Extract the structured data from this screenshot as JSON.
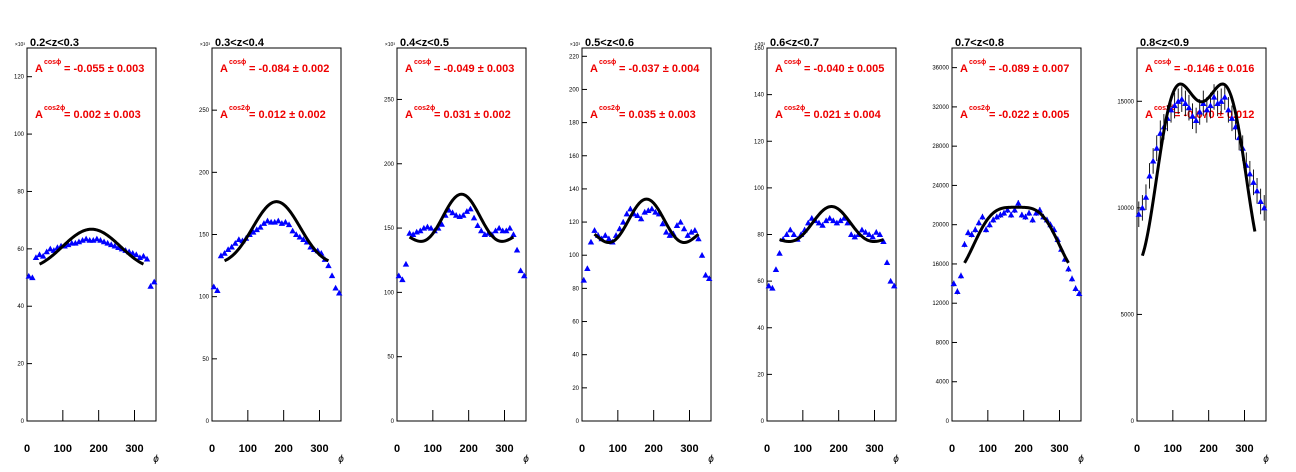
{
  "chart_data": [
    {
      "type": "scatter",
      "title": "0.2<z<0.3",
      "xlabel": "ϕ",
      "ymultiplier": "×10³",
      "xlim": [
        0,
        360
      ],
      "ylim": [
        0,
        130
      ],
      "xticks": [
        0,
        100,
        200,
        300
      ],
      "yticks": [
        0,
        20,
        40,
        60,
        80,
        100,
        120
      ],
      "A_cosphi": {
        "label": "A",
        "sup": "cosϕ",
        "text": "= -0.055 ± 0.003"
      },
      "A_cos2phi": {
        "label": "A",
        "sup": "cos2ϕ",
        "text": "= 0.002 ± 0.003"
      },
      "fit": {
        "p0": 60.0,
        "a1": -0.055,
        "a2": 0.002,
        "range": [
          35,
          325
        ]
      },
      "x": [
        5,
        15,
        25,
        35,
        45,
        55,
        65,
        75,
        85,
        95,
        105,
        115,
        125,
        135,
        145,
        155,
        165,
        175,
        185,
        195,
        205,
        215,
        225,
        235,
        245,
        255,
        265,
        275,
        285,
        295,
        305,
        315,
        325,
        335,
        345,
        355
      ],
      "y": [
        50.5,
        50.0,
        57.0,
        58.0,
        57.5,
        59.0,
        60.0,
        59.5,
        60.5,
        61.0,
        61.0,
        61.5,
        62.0,
        62.0,
        62.5,
        63.0,
        63.5,
        63.0,
        63.0,
        63.5,
        63.0,
        62.5,
        62.0,
        61.5,
        61.0,
        60.5,
        60.0,
        59.5,
        59.0,
        58.5,
        58.0,
        57.0,
        57.5,
        56.5,
        47.0,
        48.5
      ],
      "yerr": [
        0.5,
        0.5,
        0.5,
        0.5,
        0.5,
        0.5,
        0.5,
        0.5,
        0.5,
        0.5,
        0.5,
        0.5,
        0.5,
        0.5,
        0.5,
        0.5,
        0.5,
        0.5,
        0.5,
        0.5,
        0.5,
        0.5,
        0.5,
        0.5,
        0.5,
        0.5,
        0.5,
        0.5,
        0.5,
        0.5,
        0.5,
        0.5,
        0.5,
        0.5,
        0.5,
        0.5
      ]
    },
    {
      "type": "scatter",
      "title": "0.3<z<0.4",
      "xlabel": "ϕ",
      "ymultiplier": "×10³",
      "xlim": [
        0,
        360
      ],
      "ylim": [
        0,
        300
      ],
      "xticks": [
        0,
        100,
        200,
        300
      ],
      "yticks": [
        0,
        50,
        100,
        150,
        200,
        250
      ],
      "A_cosphi": {
        "label": "A",
        "sup": "cosϕ",
        "text": "= -0.084 ± 0.002"
      },
      "A_cos2phi": {
        "label": "A",
        "sup": "cos2ϕ",
        "text": "= 0.012 ± 0.002"
      },
      "fit": {
        "p0": 148.0,
        "a1": -0.084,
        "a2": 0.012,
        "range": [
          35,
          325
        ]
      },
      "x": [
        5,
        15,
        25,
        35,
        45,
        55,
        65,
        75,
        85,
        95,
        105,
        115,
        125,
        135,
        145,
        155,
        165,
        175,
        185,
        195,
        205,
        215,
        225,
        235,
        245,
        255,
        265,
        275,
        285,
        295,
        305,
        315,
        325,
        335,
        345,
        355
      ],
      "y": [
        108,
        105,
        133,
        135,
        138,
        140,
        143,
        146,
        145,
        147,
        150,
        152,
        154,
        156,
        159,
        161,
        160,
        160,
        161,
        159,
        160,
        158,
        153,
        150,
        148,
        146,
        144,
        140,
        138,
        137,
        135,
        130,
        125,
        117,
        107,
        103
      ],
      "yerr": [
        1.5,
        1.5,
        1.5,
        1.5,
        1.5,
        1.5,
        1.5,
        1.5,
        1.5,
        1.5,
        1.5,
        1.5,
        1.5,
        1.5,
        1.5,
        1.5,
        1.5,
        1.5,
        1.5,
        1.5,
        1.5,
        1.5,
        1.5,
        1.5,
        1.5,
        1.5,
        1.5,
        1.5,
        1.5,
        1.5,
        1.5,
        1.5,
        1.5,
        1.5,
        1.5,
        1.5
      ]
    },
    {
      "type": "scatter",
      "title": "0.4<z<0.5",
      "xlabel": "ϕ",
      "ymultiplier": "×10³",
      "xlim": [
        0,
        360
      ],
      "ylim": [
        0,
        290
      ],
      "xticks": [
        0,
        100,
        200,
        300
      ],
      "yticks": [
        0,
        50,
        100,
        150,
        200,
        250
      ],
      "A_cosphi": {
        "label": "A",
        "sup": "cosϕ",
        "text": "= -0.049 ± 0.003"
      },
      "A_cos2phi": {
        "label": "A",
        "sup": "cos2ϕ",
        "text": "= 0.031 ± 0.002"
      },
      "fit": {
        "p0": 152.0,
        "a1": -0.049,
        "a2": 0.031,
        "range": [
          35,
          325
        ]
      },
      "x": [
        5,
        15,
        25,
        35,
        45,
        55,
        65,
        75,
        85,
        95,
        105,
        115,
        125,
        135,
        145,
        155,
        165,
        175,
        185,
        195,
        205,
        215,
        225,
        235,
        245,
        255,
        265,
        275,
        285,
        295,
        305,
        315,
        325,
        335,
        345,
        355
      ],
      "y": [
        113,
        110,
        122,
        146,
        145,
        147,
        148,
        150,
        151,
        150,
        148,
        150,
        153,
        160,
        164,
        162,
        160,
        159,
        160,
        163,
        165,
        158,
        152,
        148,
        145,
        146,
        145,
        148,
        150,
        148,
        148,
        150,
        145,
        133,
        117,
        113
      ],
      "yerr": [
        1.5,
        1.5,
        1.5,
        1.5,
        1.5,
        1.5,
        1.5,
        1.5,
        1.5,
        1.5,
        1.5,
        1.5,
        1.5,
        1.5,
        1.5,
        1.5,
        1.5,
        1.5,
        1.5,
        1.5,
        1.5,
        1.5,
        1.5,
        1.5,
        1.5,
        1.5,
        1.5,
        1.5,
        1.5,
        1.5,
        1.5,
        1.5,
        1.5,
        1.5,
        1.5,
        1.5
      ]
    },
    {
      "type": "scatter",
      "title": "0.5<z<0.6",
      "xlabel": "ϕ",
      "ymultiplier": "×10³",
      "xlim": [
        0,
        360
      ],
      "ylim": [
        0,
        225
      ],
      "xticks": [
        0,
        100,
        200,
        300
      ],
      "yticks": [
        0,
        20,
        40,
        60,
        80,
        100,
        120,
        140,
        160,
        180,
        200,
        220
      ],
      "A_cosphi": {
        "label": "A",
        "sup": "cosϕ",
        "text": "= -0.037 ± 0.004"
      },
      "A_cos2phi": {
        "label": "A",
        "sup": "cos2ϕ",
        "text": "= 0.035 ± 0.003"
      },
      "fit": {
        "p0": 117.0,
        "a1": -0.037,
        "a2": 0.035,
        "range": [
          35,
          325
        ]
      },
      "x": [
        5,
        15,
        25,
        35,
        45,
        55,
        65,
        75,
        85,
        95,
        105,
        115,
        125,
        135,
        145,
        155,
        165,
        175,
        185,
        195,
        205,
        215,
        225,
        235,
        245,
        255,
        265,
        275,
        285,
        295,
        305,
        315,
        325,
        335,
        345,
        355
      ],
      "y": [
        85,
        92,
        108,
        115,
        112,
        110,
        112,
        110,
        108,
        112,
        116,
        120,
        125,
        128,
        125,
        124,
        122,
        126,
        127,
        128,
        126,
        125,
        119,
        114,
        112,
        113,
        118,
        120,
        116,
        112,
        114,
        115,
        110,
        100,
        88,
        86
      ],
      "yerr": [
        1.5,
        1.5,
        1.5,
        1.5,
        1.5,
        1.5,
        1.5,
        1.5,
        1.5,
        1.5,
        1.5,
        1.5,
        1.5,
        1.5,
        1.5,
        1.5,
        1.5,
        1.5,
        1.5,
        1.5,
        1.5,
        1.5,
        1.5,
        1.5,
        1.5,
        1.5,
        1.5,
        1.5,
        1.5,
        1.5,
        1.5,
        1.5,
        1.5,
        1.5,
        1.5,
        1.5
      ]
    },
    {
      "type": "scatter",
      "title": "0.6<z<0.7",
      "xlabel": "ϕ",
      "ymultiplier": "×10³",
      "xlim": [
        0,
        360
      ],
      "ylim": [
        0,
        160
      ],
      "xticks": [
        0,
        100,
        200,
        300
      ],
      "yticks": [
        0,
        20,
        40,
        60,
        80,
        100,
        120,
        140,
        160
      ],
      "A_cosphi": {
        "label": "A",
        "sup": "cosϕ",
        "text": "= -0.040 ± 0.005"
      },
      "A_cos2phi": {
        "label": "A",
        "sup": "cos2ϕ",
        "text": "= 0.021 ± 0.004"
      },
      "fit": {
        "p0": 82.0,
        "a1": -0.04,
        "a2": 0.021,
        "range": [
          35,
          325
        ]
      },
      "x": [
        5,
        15,
        25,
        35,
        45,
        55,
        65,
        75,
        85,
        95,
        105,
        115,
        125,
        135,
        145,
        155,
        165,
        175,
        185,
        195,
        205,
        215,
        225,
        235,
        245,
        255,
        265,
        275,
        285,
        295,
        305,
        315,
        325,
        335,
        345,
        355
      ],
      "y": [
        58,
        57,
        65,
        72,
        78,
        80,
        82,
        80,
        78,
        80,
        82,
        85,
        87,
        86,
        85,
        84,
        86,
        87,
        86,
        85,
        86,
        87,
        85,
        80,
        79,
        80,
        82,
        81,
        80,
        79,
        81,
        80,
        77,
        68,
        60,
        58
      ],
      "yerr": [
        1.0,
        1.0,
        1.0,
        1.0,
        1.0,
        1.0,
        1.0,
        1.0,
        1.0,
        1.0,
        1.0,
        1.0,
        1.0,
        1.0,
        1.0,
        1.0,
        1.0,
        1.0,
        1.0,
        1.0,
        1.0,
        1.0,
        1.0,
        1.0,
        1.0,
        1.0,
        1.0,
        1.0,
        1.0,
        1.0,
        1.0,
        1.0,
        1.0,
        1.0,
        1.0,
        1.0
      ]
    },
    {
      "type": "scatter",
      "title": "0.7<z<0.8",
      "xlabel": "ϕ",
      "ymultiplier": "",
      "xlim": [
        0,
        360
      ],
      "ylim": [
        0,
        38000
      ],
      "xticks": [
        0,
        100,
        200,
        300
      ],
      "yticks": [
        0,
        4000,
        8000,
        12000,
        16000,
        20000,
        24000,
        28000,
        32000,
        36000
      ],
      "A_cosphi": {
        "label": "A",
        "sup": "cosϕ",
        "text": "= -0.089 ± 0.007"
      },
      "A_cos2phi": {
        "label": "A",
        "sup": "cos2ϕ",
        "text": "= -0.022 ± 0.005"
      },
      "fit": {
        "p0": 19200,
        "a1": -0.089,
        "a2": -0.022,
        "range": [
          35,
          325
        ]
      },
      "x": [
        5,
        15,
        25,
        35,
        45,
        55,
        65,
        75,
        85,
        95,
        105,
        115,
        125,
        135,
        145,
        155,
        165,
        175,
        185,
        195,
        205,
        215,
        225,
        235,
        245,
        255,
        265,
        275,
        285,
        295,
        305,
        315,
        325,
        335,
        345,
        355
      ],
      "y": [
        14000,
        13200,
        14800,
        18000,
        19200,
        19000,
        19500,
        20200,
        20800,
        19500,
        20000,
        20500,
        20800,
        21000,
        21200,
        21500,
        21000,
        21500,
        22200,
        21000,
        20800,
        21200,
        20500,
        21200,
        21500,
        20800,
        20500,
        20000,
        19500,
        18500,
        17500,
        16500,
        15500,
        14500,
        13500,
        13000
      ],
      "yerr": [
        300,
        300,
        300,
        300,
        300,
        300,
        300,
        300,
        300,
        300,
        300,
        300,
        300,
        300,
        300,
        300,
        300,
        300,
        300,
        300,
        300,
        300,
        300,
        300,
        300,
        300,
        300,
        300,
        300,
        300,
        300,
        300,
        300,
        300,
        300,
        300
      ]
    },
    {
      "type": "scatter",
      "title": "0.8<z<0.9",
      "xlabel": "ϕ",
      "ymultiplier": "",
      "xlim": [
        0,
        360
      ],
      "ylim": [
        0,
        17500
      ],
      "xticks": [
        0,
        100,
        200,
        300
      ],
      "yticks": [
        0,
        5000,
        10000,
        15000
      ],
      "A_cosphi": {
        "label": "A",
        "sup": "cosϕ",
        "text": "= -0.146 ± 0.016"
      },
      "A_cos2phi": {
        "label": "A",
        "sup": "cos2ϕ",
        "text": "= -0.070 ± 0.012"
      },
      "fit": {
        "p0": 13000,
        "a1": -0.146,
        "a2": -0.07,
        "range": [
          15,
          330
        ]
      },
      "x": [
        5,
        15,
        25,
        35,
        45,
        55,
        65,
        75,
        85,
        95,
        105,
        115,
        125,
        135,
        145,
        155,
        165,
        175,
        185,
        195,
        205,
        215,
        225,
        235,
        245,
        255,
        265,
        275,
        285,
        295,
        305,
        315,
        325,
        335,
        345,
        355
      ],
      "y": [
        9700,
        10000,
        10500,
        11500,
        12200,
        12800,
        13500,
        13800,
        14200,
        14600,
        14800,
        15000,
        15100,
        14900,
        14700,
        14300,
        14100,
        14500,
        14900,
        14600,
        14800,
        15200,
        14900,
        15000,
        15200,
        14600,
        14200,
        13800,
        13300,
        12800,
        12000,
        11600,
        11200,
        10800,
        10300,
        10000
      ],
      "yerr": [
        600,
        600,
        600,
        600,
        600,
        600,
        600,
        600,
        600,
        600,
        600,
        600,
        600,
        600,
        600,
        600,
        600,
        600,
        600,
        600,
        600,
        600,
        600,
        600,
        600,
        600,
        600,
        600,
        600,
        600,
        600,
        600,
        600,
        600,
        600,
        600
      ]
    }
  ]
}
